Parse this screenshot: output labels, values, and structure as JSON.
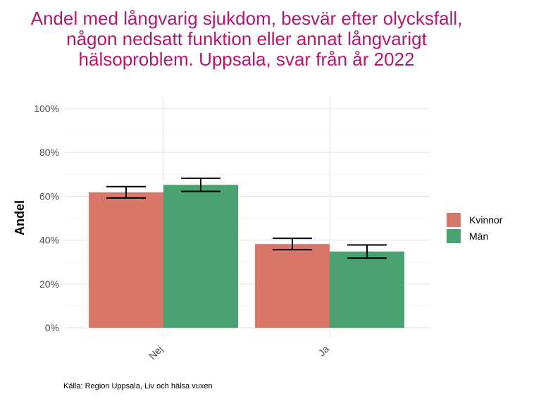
{
  "chart_data": {
    "type": "bar",
    "title": "Andel med långvarig sjukdom, besvär efter olycksfall, någon nedsatt funktion eller annat långvarigt hälsoproblem. Uppsala, svar från år 2022",
    "ylabel": "Andel",
    "xlabel": "",
    "categories": [
      "Nej",
      "Ja"
    ],
    "series": [
      {
        "name": "Kvinnor",
        "color": "#d6776a",
        "values": [
          61.8,
          38.2
        ],
        "err_low": [
          59.2,
          35.6
        ],
        "err_high": [
          64.4,
          40.8
        ]
      },
      {
        "name": "Män",
        "color": "#4aa271",
        "values": [
          65.2,
          34.8
        ],
        "err_low": [
          62.2,
          31.8
        ],
        "err_high": [
          68.2,
          37.8
        ]
      }
    ],
    "ylim": [
      0,
      100
    ],
    "yticks": [
      "0%",
      "20%",
      "40%",
      "60%",
      "80%",
      "100%"
    ],
    "ytick_values": [
      0,
      20,
      40,
      60,
      80,
      100
    ],
    "grid": true,
    "legend_position": "right"
  },
  "source": "Källa: Region Uppsala, Liv och hälsa vuxen"
}
